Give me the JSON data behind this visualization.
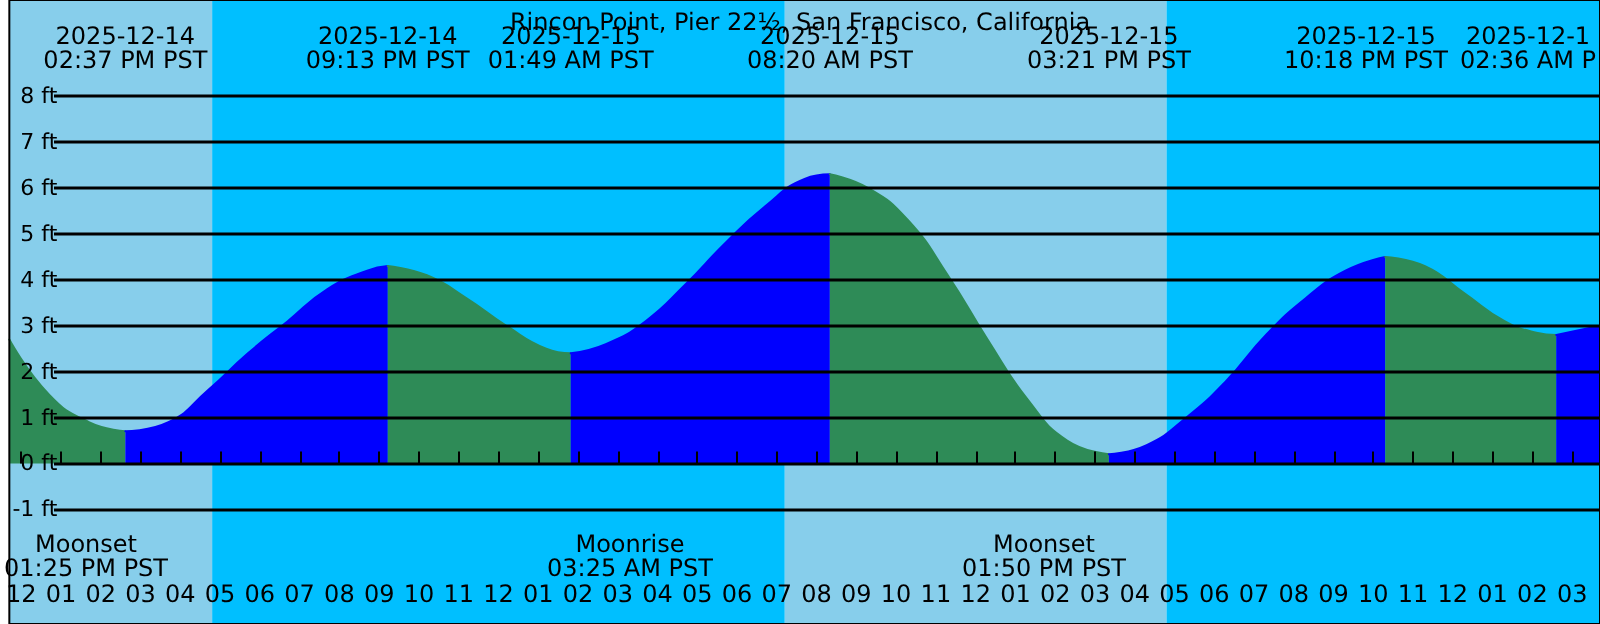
{
  "chart_data": {
    "type": "area",
    "title": "Rincon Point, Pier 22½, San Francisco, California",
    "xlim": [
      "2025-12-14T11:42",
      "2025-12-16T03:42"
    ],
    "ylim": [
      -3.5,
      10.1
    ],
    "xticks": [
      {
        "value": "2025-12-14T12:00",
        "label": "12"
      },
      {
        "value": "2025-12-14T13:00",
        "label": "01"
      },
      {
        "value": "2025-12-14T14:00",
        "label": "02"
      },
      {
        "value": "2025-12-14T15:00",
        "label": "03"
      },
      {
        "value": "2025-12-14T16:00",
        "label": "04"
      },
      {
        "value": "2025-12-14T17:00",
        "label": "05"
      },
      {
        "value": "2025-12-14T18:00",
        "label": "06"
      },
      {
        "value": "2025-12-14T19:00",
        "label": "07"
      },
      {
        "value": "2025-12-14T20:00",
        "label": "08"
      },
      {
        "value": "2025-12-14T21:00",
        "label": "09"
      },
      {
        "value": "2025-12-14T22:00",
        "label": "10"
      },
      {
        "value": "2025-12-14T23:00",
        "label": "11"
      },
      {
        "value": "2025-12-15T00:00",
        "label": "12"
      },
      {
        "value": "2025-12-15T01:00",
        "label": "01"
      },
      {
        "value": "2025-12-15T02:00",
        "label": "02"
      },
      {
        "value": "2025-12-15T03:00",
        "label": "03"
      },
      {
        "value": "2025-12-15T04:00",
        "label": "04"
      },
      {
        "value": "2025-12-15T05:00",
        "label": "05"
      },
      {
        "value": "2025-12-15T06:00",
        "label": "06"
      },
      {
        "value": "2025-12-15T07:00",
        "label": "07"
      },
      {
        "value": "2025-12-15T08:00",
        "label": "08"
      },
      {
        "value": "2025-12-15T09:00",
        "label": "09"
      },
      {
        "value": "2025-12-15T10:00",
        "label": "10"
      },
      {
        "value": "2025-12-15T11:00",
        "label": "11"
      },
      {
        "value": "2025-12-15T12:00",
        "label": "12"
      },
      {
        "value": "2025-12-15T13:00",
        "label": "01"
      },
      {
        "value": "2025-12-15T14:00",
        "label": "02"
      },
      {
        "value": "2025-12-15T15:00",
        "label": "03"
      },
      {
        "value": "2025-12-15T16:00",
        "label": "04"
      },
      {
        "value": "2025-12-15T17:00",
        "label": "05"
      },
      {
        "value": "2025-12-15T18:00",
        "label": "06"
      },
      {
        "value": "2025-12-15T19:00",
        "label": "07"
      },
      {
        "value": "2025-12-15T20:00",
        "label": "08"
      },
      {
        "value": "2025-12-15T21:00",
        "label": "09"
      },
      {
        "value": "2025-12-15T22:00",
        "label": "10"
      },
      {
        "value": "2025-12-15T23:00",
        "label": "11"
      },
      {
        "value": "2025-12-16T00:00",
        "label": "12"
      },
      {
        "value": "2025-12-16T01:00",
        "label": "01"
      },
      {
        "value": "2025-12-16T02:00",
        "label": "02"
      },
      {
        "value": "2025-12-16T03:00",
        "label": "03"
      }
    ],
    "yticks": [
      {
        "value": -1,
        "label": "-1 ft"
      },
      {
        "value": 0,
        "label": "0 ft"
      },
      {
        "value": 1,
        "label": "1 ft"
      },
      {
        "value": 2,
        "label": "2 ft"
      },
      {
        "value": 3,
        "label": "3 ft"
      },
      {
        "value": 4,
        "label": "4 ft"
      },
      {
        "value": 5,
        "label": "5 ft"
      },
      {
        "value": 6,
        "label": "6 ft"
      },
      {
        "value": 7,
        "label": "7 ft"
      },
      {
        "value": 8,
        "label": "8 ft"
      }
    ],
    "grid": "y",
    "marker": "none",
    "bands": [
      {
        "axis": "x",
        "from": "2025-12-14T11:42",
        "to": "2025-12-14T16:48",
        "color": "#87ceeb"
      },
      {
        "axis": "x",
        "from": "2025-12-14T16:48",
        "to": "2025-12-15T07:12",
        "color": "#00bfff"
      },
      {
        "axis": "x",
        "from": "2025-12-15T07:12",
        "to": "2025-12-15T16:48",
        "color": "#87ceeb"
      },
      {
        "axis": "x",
        "from": "2025-12-15T16:48",
        "to": "2025-12-16T03:42",
        "color": "#00bfff"
      }
    ],
    "series": [
      {
        "color": "#2e8b57",
        "x": [
          "2025-12-14T11:42",
          "2025-12-14T12:42",
          "2025-12-14T13:42",
          "2025-12-14T14:37"
        ],
        "values": [
          2.7,
          1.5,
          0.9,
          0.7
        ]
      },
      {
        "color": "#0000ff",
        "x": [
          "2025-12-14T14:37",
          "2025-12-14T15:42",
          "2025-12-14T16:42",
          "2025-12-14T17:42",
          "2025-12-14T18:42",
          "2025-12-14T19:42",
          "2025-12-14T20:42",
          "2025-12-14T21:13"
        ],
        "values": [
          0.7,
          0.9,
          1.6,
          2.4,
          3.1,
          3.8,
          4.2,
          4.3
        ]
      },
      {
        "color": "#2e8b57",
        "x": [
          "2025-12-14T21:13",
          "2025-12-14T22:12",
          "2025-12-14T23:12",
          "2025-12-15T00:12",
          "2025-12-15T01:12",
          "2025-12-15T01:49"
        ],
        "values": [
          4.3,
          4.1,
          3.6,
          3.0,
          2.5,
          2.4
        ]
      },
      {
        "color": "#0000ff",
        "x": [
          "2025-12-15T01:49",
          "2025-12-15T02:42",
          "2025-12-15T03:42",
          "2025-12-15T04:42",
          "2025-12-15T05:42",
          "2025-12-15T06:42",
          "2025-12-15T07:42",
          "2025-12-15T08:20"
        ],
        "values": [
          2.4,
          2.6,
          3.1,
          3.9,
          4.8,
          5.6,
          6.2,
          6.3
        ]
      },
      {
        "color": "#2e8b57",
        "x": [
          "2025-12-15T08:20",
          "2025-12-15T09:18",
          "2025-12-15T10:18",
          "2025-12-15T11:18",
          "2025-12-15T12:18",
          "2025-12-15T13:18",
          "2025-12-15T14:18",
          "2025-12-15T15:21"
        ],
        "values": [
          6.3,
          6.0,
          5.3,
          4.1,
          2.7,
          1.4,
          0.5,
          0.2
        ]
      },
      {
        "color": "#0000ff",
        "x": [
          "2025-12-15T15:21",
          "2025-12-15T16:18",
          "2025-12-15T17:18",
          "2025-12-15T18:18",
          "2025-12-15T19:18",
          "2025-12-15T20:18",
          "2025-12-15T21:18",
          "2025-12-15T22:18"
        ],
        "values": [
          0.2,
          0.4,
          1.0,
          1.8,
          2.8,
          3.6,
          4.2,
          4.5
        ]
      },
      {
        "color": "#2e8b57",
        "x": [
          "2025-12-15T22:18",
          "2025-12-15T23:18",
          "2025-12-16T00:18",
          "2025-12-16T01:18",
          "2025-12-16T02:06",
          "2025-12-16T02:36"
        ],
        "values": [
          4.5,
          4.3,
          3.7,
          3.1,
          2.85,
          2.8
        ]
      },
      {
        "color": "#0000ff",
        "x": [
          "2025-12-16T02:36",
          "2025-12-16T03:42"
        ],
        "values": [
          2.8,
          3.0
        ]
      }
    ],
    "annotations": [
      "2025-12-14\n02:37 PM PST",
      "2025-12-14\n09:13 PM PST",
      "2025-12-15\n01:49 AM PST",
      "2025-12-15\n08:20 AM PST",
      "2025-12-15\n03:21 PM PST",
      "2025-12-15\n10:18 PM PST",
      "2025-12-1\n02:36 AM P",
      "Moonset\n01:25 PM PST",
      "Moonrise\n03:25 AM PST",
      "Moonset\n01:50 PM PST"
    ]
  }
}
